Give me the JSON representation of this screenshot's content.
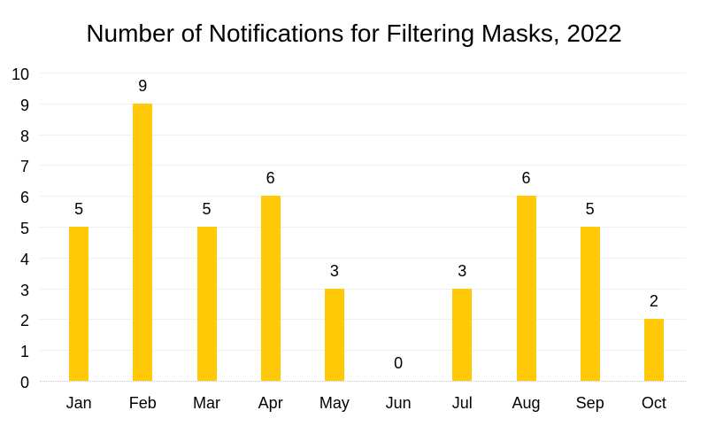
{
  "chart_data": {
    "type": "bar",
    "title": "Number of Notifications for Filtering Masks, 2022",
    "categories": [
      "Jan",
      "Feb",
      "Mar",
      "Apr",
      "May",
      "Jun",
      "Jul",
      "Aug",
      "Sep",
      "Oct"
    ],
    "values": [
      5,
      9,
      5,
      6,
      3,
      0,
      3,
      6,
      5,
      2
    ],
    "data_labels": [
      5,
      9,
      5,
      6,
      3,
      0,
      3,
      6,
      5,
      2
    ],
    "xlabel": "",
    "ylabel": "",
    "ylim": [
      0,
      10
    ],
    "yticks": [
      0,
      1,
      2,
      3,
      4,
      5,
      6,
      7,
      8,
      9,
      10
    ],
    "grid": "horizontal-faint",
    "legend": "none",
    "colors": {
      "bar": "#FFC907",
      "text": "#000000",
      "gridline": "#F0F0F0",
      "baseline": "#C9C9C9",
      "background": "#FFFFFF"
    }
  }
}
